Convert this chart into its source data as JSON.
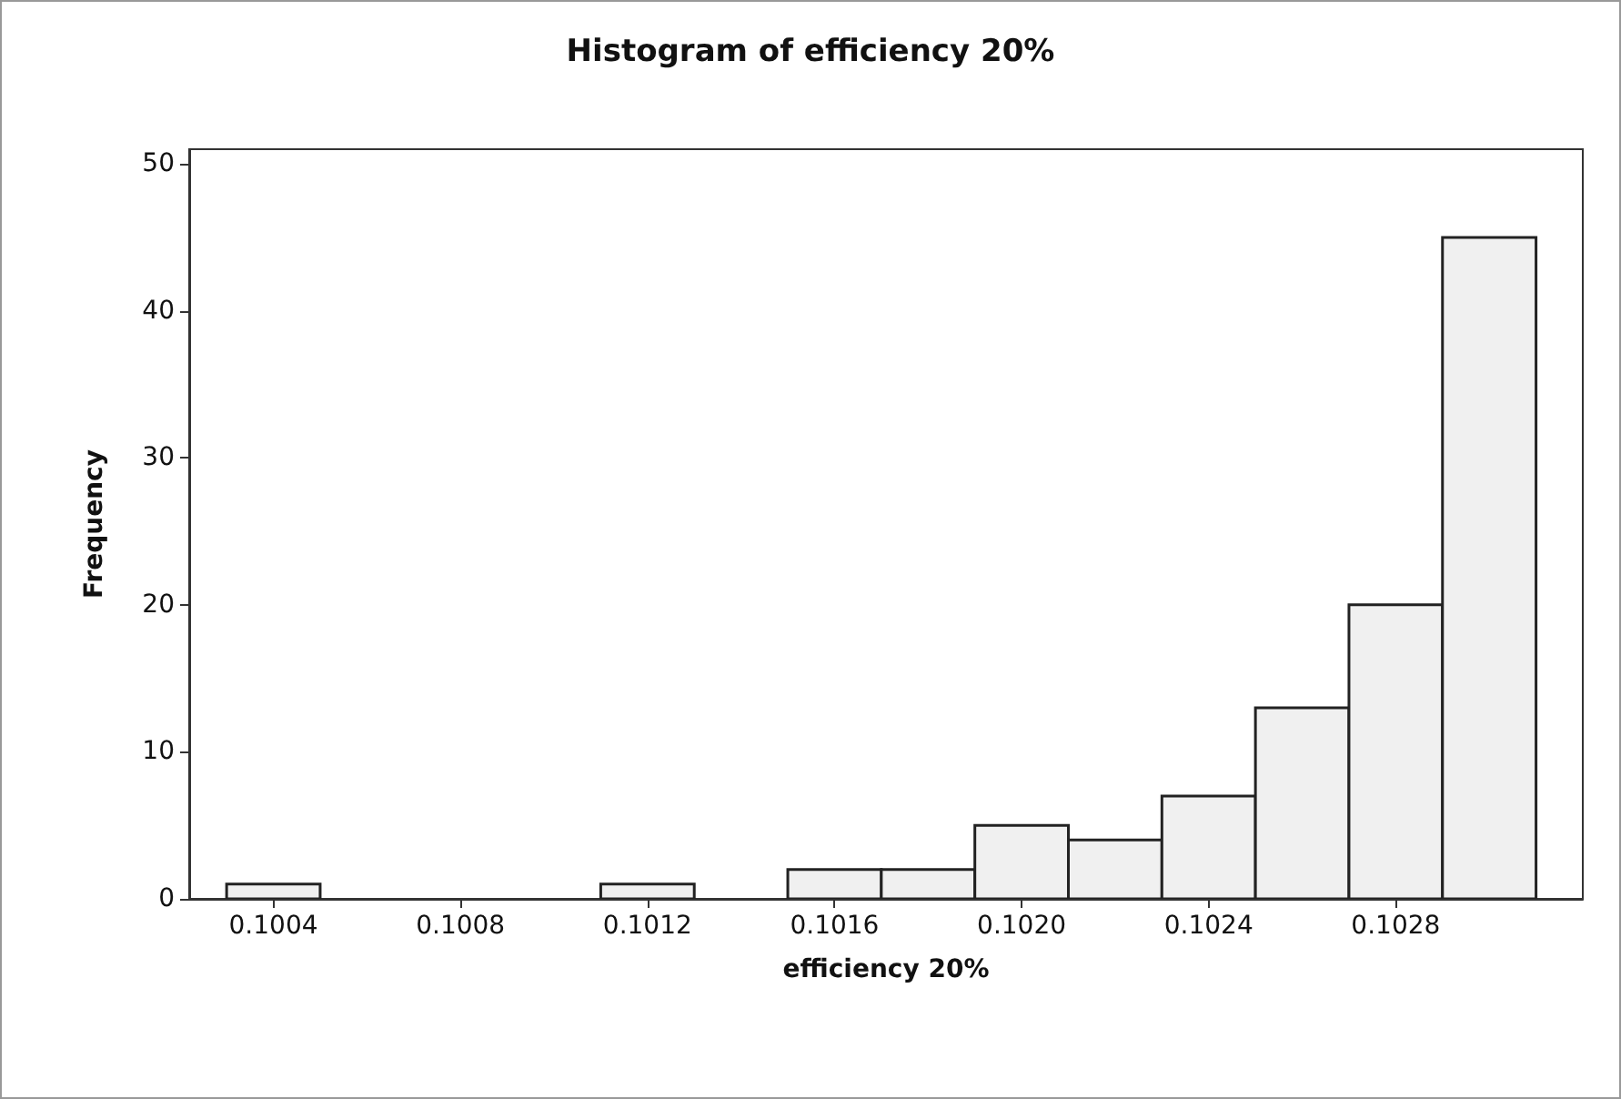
{
  "chart_data": {
    "type": "histogram",
    "title": "Histogram of efficiency 20%",
    "xlabel": "efficiency 20%",
    "ylabel": "Frequency",
    "bins": [
      0.1003,
      0.1005,
      0.1007,
      0.1009,
      0.1011,
      0.1013,
      0.1015,
      0.1017,
      0.1019,
      0.1021,
      0.1023,
      0.1025,
      0.1027,
      0.1029,
      0.1031
    ],
    "values": [
      1,
      0,
      0,
      0,
      1,
      0,
      2,
      2,
      5,
      4,
      7,
      13,
      20,
      45
    ],
    "color": "#f0f0f0",
    "xlim": [
      0.10022,
      0.1032
    ],
    "xticks": [
      0.1004,
      0.1008,
      0.1012,
      0.1016,
      {
        "value": 0.102,
        "label": "0.1020"
      },
      0.1024,
      0.1028
    ],
    "ylim": [
      0,
      51
    ],
    "yticks": [
      0,
      10,
      20,
      30,
      40,
      50
    ],
    "grid": false
  }
}
